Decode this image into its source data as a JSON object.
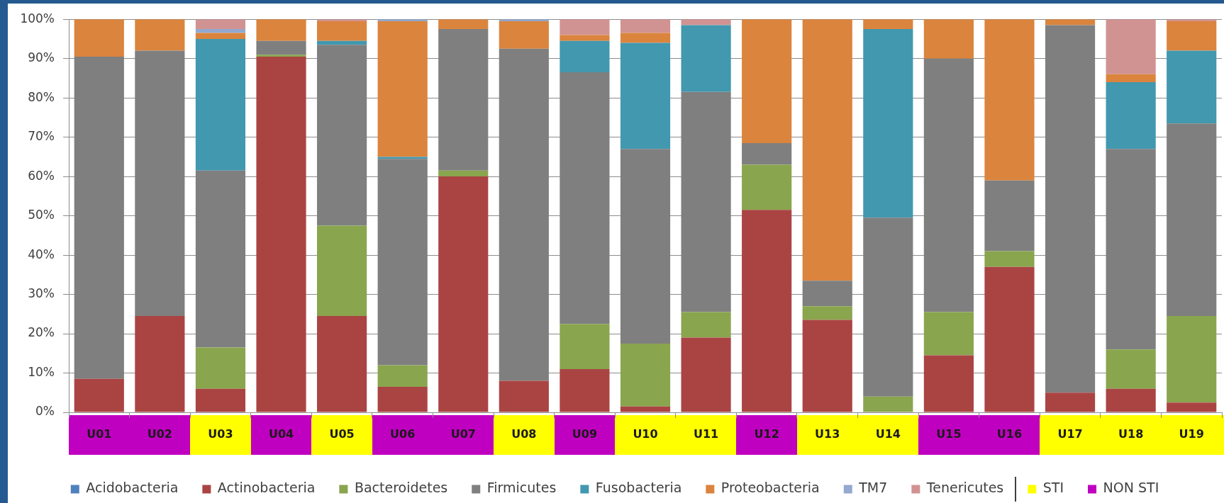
{
  "chart_data": {
    "type": "bar",
    "stacked": true,
    "grid": "y",
    "legend": "bottom",
    "categories": [
      "U01",
      "U02",
      "U03",
      "U04",
      "U05",
      "U06",
      "U07",
      "U08",
      "U09",
      "U10",
      "U11",
      "U12",
      "U13",
      "U14",
      "U15",
      "U16",
      "U17",
      "U18",
      "U19"
    ],
    "colors": [
      "#c000c0",
      "#c000c0",
      "#ffff00",
      "#c000c0",
      "#ffff00",
      "#c000c0",
      "#c000c0",
      "#ffff00",
      "#c000c0",
      "#ffff00",
      "#ffff00",
      "#c000c0",
      "#ffff00",
      "#ffff00",
      "#c000c0",
      "#c000c0",
      "#ffff00",
      "#ffff00",
      "#ffff00"
    ],
    "ylim": [
      0,
      100
    ],
    "yticks": [
      {
        "value": 0,
        "label": "0%"
      },
      {
        "value": 10,
        "label": "10%"
      },
      {
        "value": 20,
        "label": "20%"
      },
      {
        "value": 30,
        "label": "30%"
      },
      {
        "value": 40,
        "label": "40%"
      },
      {
        "value": 50,
        "label": "50%"
      },
      {
        "value": 60,
        "label": "60%"
      },
      {
        "value": 70,
        "label": "70%"
      },
      {
        "value": 80,
        "label": "80%"
      },
      {
        "value": 90,
        "label": "90%"
      },
      {
        "value": 100,
        "label": "100%"
      }
    ],
    "series": [
      {
        "name": "Acidobacteria",
        "color": "#4f81bd",
        "values": [
          0,
          0,
          0,
          0,
          0,
          0,
          0,
          0,
          0,
          0,
          0,
          0,
          0,
          0,
          0,
          0,
          0,
          0,
          0
        ]
      },
      {
        "name": "Actinobacteria",
        "color": "#aa4443",
        "values": [
          8.5,
          24.5,
          6,
          90.5,
          24.5,
          6.5,
          60,
          8,
          11,
          1.5,
          19,
          51.5,
          23.5,
          0,
          14.5,
          37,
          5,
          6,
          2.5
        ]
      },
      {
        "name": "Bacteroidetes",
        "color": "#89a54e",
        "values": [
          0,
          0,
          10.5,
          0.5,
          23,
          5.5,
          1.5,
          0,
          11.5,
          16,
          6.5,
          11.5,
          3.5,
          4,
          11,
          4,
          0,
          10,
          22
        ]
      },
      {
        "name": "Firmicutes",
        "color": "#7f7f7f",
        "values": [
          82,
          67.5,
          45,
          3.5,
          46,
          52.5,
          36,
          84.5,
          64,
          49.5,
          56,
          5.5,
          6.5,
          45.5,
          64.5,
          18,
          93.5,
          51,
          49
        ]
      },
      {
        "name": "Fusobacteria",
        "color": "#4198af",
        "values": [
          0,
          0,
          33.5,
          0,
          1,
          0.5,
          0,
          0,
          8,
          27,
          17,
          0,
          0,
          48,
          0,
          0,
          0,
          17,
          18.5
        ]
      },
      {
        "name": "Proteobacteria",
        "color": "#db843d",
        "values": [
          9.5,
          8,
          1.5,
          5.5,
          5,
          34.5,
          2.5,
          7,
          1.5,
          2.5,
          0,
          31.5,
          66.5,
          2.5,
          10,
          41,
          1.5,
          2,
          7.5
        ]
      },
      {
        "name": "TM7",
        "color": "#93a9cf",
        "values": [
          0,
          0,
          1,
          0,
          0,
          0.5,
          0,
          0.5,
          0,
          0,
          0,
          0,
          0,
          0,
          0,
          0,
          0,
          0,
          0
        ]
      },
      {
        "name": "Tenericutes",
        "color": "#d19392",
        "values": [
          0,
          0,
          2.5,
          0,
          0.5,
          0,
          0,
          0,
          4,
          3.5,
          1.5,
          0,
          0,
          0,
          0,
          0,
          0,
          14,
          0.5
        ]
      },
      {
        "name": "STI",
        "color": "#ffff00",
        "values": [
          null,
          null,
          null,
          null,
          null,
          null,
          null,
          null,
          null,
          null,
          null,
          null,
          null,
          null,
          null,
          null,
          null,
          null,
          null
        ]
      },
      {
        "name": "NON STI",
        "color": "#c000c0",
        "values": [
          null,
          null,
          null,
          null,
          null,
          null,
          null,
          null,
          null,
          null,
          null,
          null,
          null,
          null,
          null,
          null,
          null,
          null,
          null
        ]
      }
    ]
  }
}
